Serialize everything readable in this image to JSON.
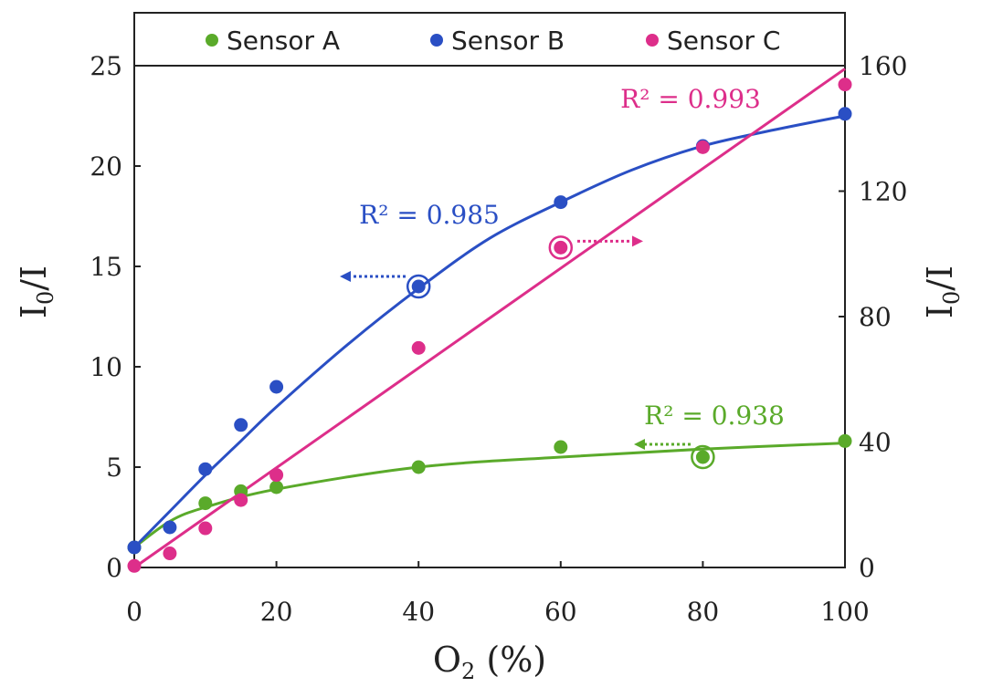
{
  "chart_data": {
    "type": "scatter",
    "xlabel": {
      "base": "O",
      "sub": "2",
      "rest": " (%)"
    },
    "ylabel_left": {
      "base": "I",
      "sub": "0",
      "rest": "/I"
    },
    "ylabel_right": {
      "base": "I",
      "sub": "0",
      "rest": "/I"
    },
    "xlim": [
      0,
      100
    ],
    "ylim_left": [
      0,
      25
    ],
    "ylim_right": [
      0,
      160
    ],
    "x_ticks": [
      "0",
      "20",
      "40",
      "60",
      "80",
      "100"
    ],
    "y_ticks_left": [
      "0",
      "5",
      "10",
      "15",
      "20",
      "25"
    ],
    "y_ticks_right": [
      "0",
      "40",
      "80",
      "120",
      "160"
    ],
    "legend_position": "top",
    "series": [
      {
        "name": "Sensor A",
        "color": "#5aaa2a",
        "axis": "left",
        "x": [
          0,
          10,
          15,
          20,
          40,
          60,
          80,
          100
        ],
        "y": [
          1.0,
          3.2,
          3.8,
          4.0,
          5.0,
          6.0,
          5.5,
          6.3
        ],
        "fit": [
          [
            0,
            1.0
          ],
          [
            5,
            2.3
          ],
          [
            10,
            3.0
          ],
          [
            20,
            3.9
          ],
          [
            40,
            5.0
          ],
          [
            60,
            5.5
          ],
          [
            80,
            5.9
          ],
          [
            100,
            6.2
          ]
        ],
        "r2": "R² = 0.938",
        "circled_point": [
          80,
          5.5
        ],
        "arrow": "left"
      },
      {
        "name": "Sensor B",
        "color": "#2a4fc4",
        "axis": "left",
        "x": [
          0,
          5,
          10,
          15,
          20,
          40,
          60,
          80,
          100
        ],
        "y": [
          1.0,
          2.0,
          4.9,
          7.1,
          9.0,
          14.0,
          18.2,
          21.0,
          22.6
        ],
        "fit": [
          [
            0,
            1.0
          ],
          [
            5,
            2.8
          ],
          [
            10,
            4.6
          ],
          [
            15,
            6.3
          ],
          [
            20,
            8.0
          ],
          [
            30,
            11.1
          ],
          [
            40,
            13.9
          ],
          [
            50,
            16.4
          ],
          [
            60,
            18.2
          ],
          [
            70,
            19.8
          ],
          [
            80,
            21.0
          ],
          [
            90,
            21.8
          ],
          [
            100,
            22.5
          ]
        ],
        "r2": "R² = 0.985",
        "circled_point": [
          40,
          14.0
        ],
        "arrow": "left"
      },
      {
        "name": "Sensor C",
        "color": "#dd2e8a",
        "axis": "right",
        "x": [
          0,
          5,
          10,
          15,
          20,
          40,
          60,
          80,
          100
        ],
        "y": [
          0.5,
          4.5,
          12.5,
          21.5,
          29.5,
          70,
          102,
          134,
          154
        ],
        "fit": [
          [
            0,
            0
          ],
          [
            100,
            159
          ]
        ],
        "r2": "R² = 0.993",
        "circled_point": [
          60,
          102
        ],
        "arrow": "right"
      }
    ]
  }
}
